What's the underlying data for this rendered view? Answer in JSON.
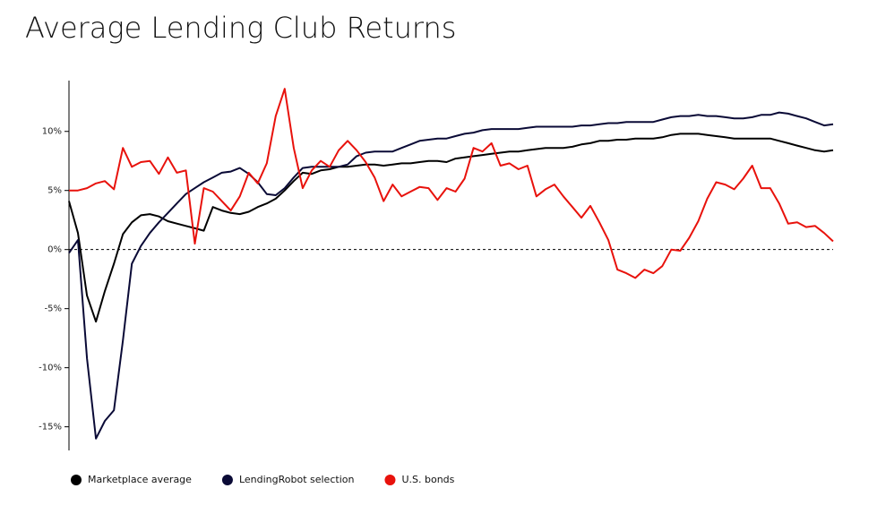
{
  "chart_data": {
    "type": "line",
    "title": "Average Lending Club Returns",
    "ylim": [
      -17,
      14.3
    ],
    "yticks": [
      {
        "value": -15,
        "label": "-15%"
      },
      {
        "value": -10,
        "label": "-10%"
      },
      {
        "value": -5,
        "label": "-5%"
      },
      {
        "value": 0,
        "label": "0%"
      },
      {
        "value": 5,
        "label": "5%"
      },
      {
        "value": 10,
        "label": "10%"
      }
    ],
    "zero_line": true,
    "legend": "bottom",
    "series": [
      {
        "name": "Marketplace average",
        "color": "#000000",
        "values": [
          4.1,
          1.4,
          -3.9,
          -6.1,
          -3.5,
          -1.2,
          1.3,
          2.3,
          2.9,
          3.0,
          2.8,
          2.4,
          2.2,
          2.0,
          1.8,
          1.6,
          3.6,
          3.3,
          3.1,
          3.0,
          3.2,
          3.6,
          3.9,
          4.3,
          5.0,
          5.8,
          6.5,
          6.4,
          6.7,
          6.8,
          7.0,
          7.0,
          7.1,
          7.2,
          7.2,
          7.1,
          7.2,
          7.3,
          7.3,
          7.4,
          7.5,
          7.5,
          7.4,
          7.7,
          7.8,
          7.9,
          8.0,
          8.1,
          8.2,
          8.3,
          8.3,
          8.4,
          8.5,
          8.6,
          8.6,
          8.6,
          8.7,
          8.9,
          9.0,
          9.2,
          9.2,
          9.3,
          9.3,
          9.4,
          9.4,
          9.4,
          9.5,
          9.7,
          9.8,
          9.8,
          9.8,
          9.7,
          9.6,
          9.5,
          9.4,
          9.4,
          9.4,
          9.4,
          9.4,
          9.2,
          9.0,
          8.8,
          8.6,
          8.4,
          8.3,
          8.4
        ]
      },
      {
        "name": "LendingRobot selection",
        "color": "#0a0a36",
        "values": [
          -0.3,
          0.8,
          -9.2,
          -16.0,
          -14.5,
          -13.6,
          -7.7,
          -1.2,
          0.3,
          1.4,
          2.3,
          3.1,
          3.9,
          4.7,
          5.2,
          5.7,
          6.1,
          6.5,
          6.6,
          6.9,
          6.4,
          5.7,
          4.7,
          4.6,
          5.2,
          6.1,
          6.9,
          7.0,
          7.0,
          7.0,
          7.0,
          7.2,
          7.9,
          8.2,
          8.3,
          8.3,
          8.3,
          8.6,
          8.9,
          9.2,
          9.3,
          9.4,
          9.4,
          9.6,
          9.8,
          9.9,
          10.1,
          10.2,
          10.2,
          10.2,
          10.2,
          10.3,
          10.4,
          10.4,
          10.4,
          10.4,
          10.4,
          10.5,
          10.5,
          10.6,
          10.7,
          10.7,
          10.8,
          10.8,
          10.8,
          10.8,
          11.0,
          11.2,
          11.3,
          11.3,
          11.4,
          11.3,
          11.3,
          11.2,
          11.1,
          11.1,
          11.2,
          11.4,
          11.4,
          11.6,
          11.5,
          11.3,
          11.1,
          10.8,
          10.5,
          10.6
        ]
      },
      {
        "name": "U.S. bonds",
        "color": "#e8120c",
        "values": [
          5.0,
          5.0,
          5.2,
          5.6,
          5.8,
          5.1,
          8.6,
          7.0,
          7.4,
          7.5,
          6.4,
          7.8,
          6.5,
          6.7,
          0.5,
          5.2,
          4.9,
          4.1,
          3.3,
          4.5,
          6.5,
          5.6,
          7.3,
          11.3,
          13.6,
          8.6,
          5.2,
          6.7,
          7.5,
          7.0,
          8.4,
          9.2,
          8.4,
          7.4,
          6.1,
          4.1,
          5.5,
          4.5,
          4.9,
          5.3,
          5.2,
          4.2,
          5.2,
          4.9,
          6.0,
          8.6,
          8.3,
          9.0,
          7.1,
          7.3,
          6.8,
          7.1,
          4.5,
          5.1,
          5.5,
          4.5,
          3.6,
          2.7,
          3.7,
          2.3,
          0.8,
          -1.7,
          -2.0,
          -2.4,
          -1.7,
          -2.0,
          -1.4,
          0.0,
          -0.1,
          1.0,
          2.4,
          4.3,
          5.7,
          5.5,
          5.1,
          6.0,
          7.1,
          5.2,
          5.2,
          3.9,
          2.2,
          2.3,
          1.9,
          2.0,
          1.4,
          0.7
        ]
      }
    ]
  }
}
